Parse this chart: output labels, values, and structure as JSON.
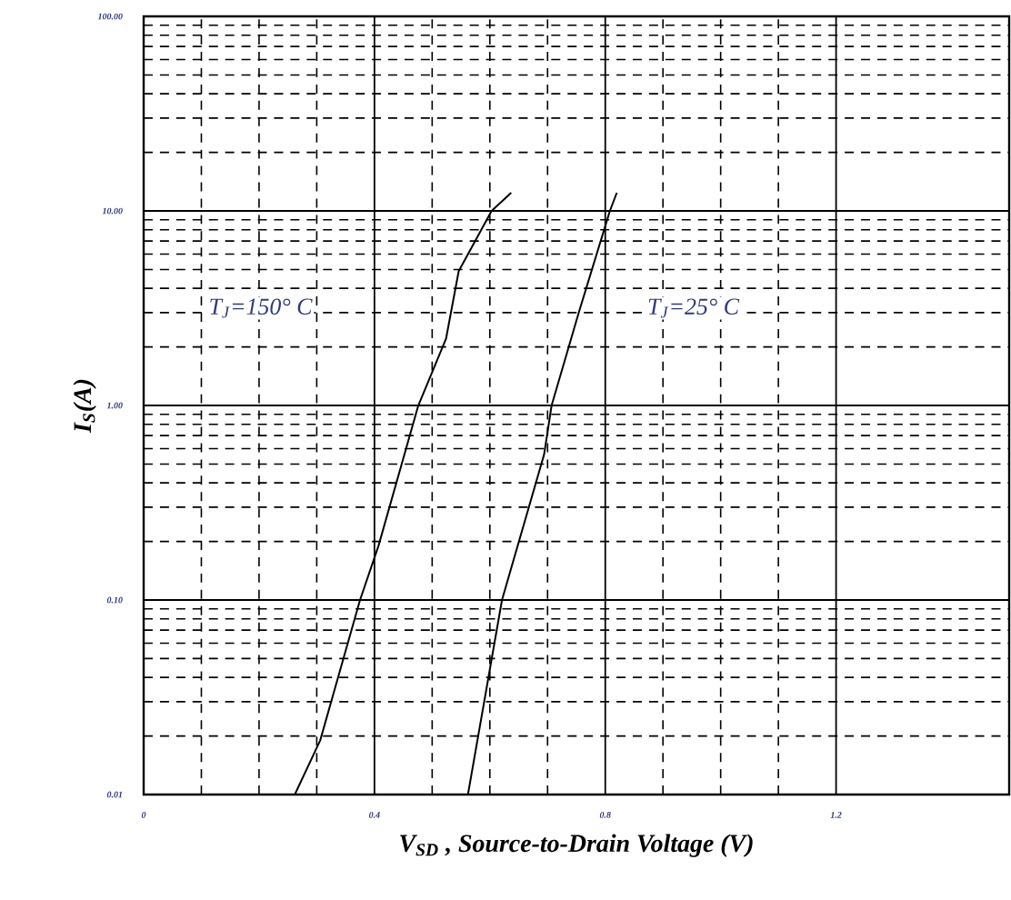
{
  "chart_data": {
    "type": "line",
    "xlabel": "V$_{SD}$ , Source-to-Drain Voltage (V)",
    "ylabel": "I$_{S}$(A)",
    "xlim": [
      0,
      1.5
    ],
    "ylim": [
      0.01,
      100
    ],
    "xticks": [
      0,
      0.4,
      0.8,
      1.2
    ],
    "yticks": [
      {
        "value": 0.01,
        "label": "0.01"
      },
      {
        "value": 0.1,
        "label": "0.10"
      },
      {
        "value": 1,
        "label": "1.00"
      },
      {
        "value": 10,
        "label": "10.00"
      },
      {
        "value": 100,
        "label": "100.00"
      }
    ],
    "log": "y",
    "grid": true,
    "marker": "none",
    "line_style": "solid",
    "series": [
      {
        "color": "#000000",
        "x": [
          0.262,
          0.306,
          0.375,
          0.407,
          0.476,
          0.524,
          0.546,
          0.603,
          0.637
        ],
        "values": [
          0.01,
          0.019,
          0.1,
          0.19,
          1,
          2.2,
          4.9,
          10,
          12.4
        ]
      },
      {
        "color": "#000000",
        "x": [
          0.562,
          0.621,
          0.694,
          0.707,
          0.754,
          0.808,
          0.82
        ],
        "values": [
          0.01,
          0.1,
          0.56,
          1,
          3,
          10,
          12.4
        ]
      }
    ],
    "annotations": [
      "T$_{J}$=150° C",
      "T$_{J}$=25° C"
    ]
  }
}
